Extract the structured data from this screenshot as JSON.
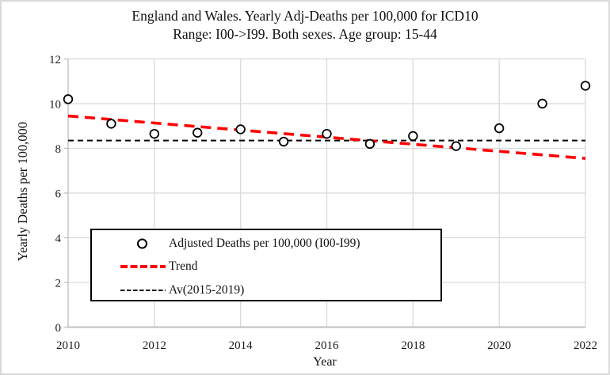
{
  "figure": {
    "title_line1": "England and Wales. Yearly Adj-Deaths per 100,000 for ICD10",
    "title_line2": "Range: I00->I99. Both sexes. Age group: 15-44",
    "x_axis_label": "Year",
    "y_axis_label": "Yearly Deaths per 100,000"
  },
  "legend": {
    "items": [
      {
        "marker": "open-circle-marker",
        "label": "Adjusted Deaths per 100,000 (I00-I99)"
      },
      {
        "marker": "red-dashed-line",
        "label": "Trend"
      },
      {
        "marker": "black-dashed-line",
        "label": "Av(2015-2019)"
      }
    ]
  },
  "colors": {
    "trend_red": "#ff0000",
    "marker_stroke": "#000000",
    "average_line": "#000000",
    "gridline": "#d9d9d9",
    "axis_line": "#bfbfbf",
    "text": "#1a1a1a",
    "figure_border": "#d9d9d9"
  },
  "chart_data": {
    "type": "scatter",
    "title": "England and Wales. Yearly Adj-Deaths per 100,000 for ICD10 Range: I00->I99. Both sexes. Age group: 15-44",
    "xlabel": "Year",
    "ylabel": "Yearly Deaths per 100,000",
    "xlim": [
      2010,
      2022
    ],
    "ylim": [
      0,
      12
    ],
    "x_ticks": [
      2010,
      2012,
      2014,
      2016,
      2018,
      2020,
      2022
    ],
    "y_ticks": [
      0,
      2,
      4,
      6,
      8,
      10,
      12
    ],
    "grid": true,
    "legend_position": "inside-lower-left",
    "x": [
      2010,
      2011,
      2012,
      2013,
      2014,
      2015,
      2016,
      2017,
      2018,
      2019,
      2020,
      2021,
      2022
    ],
    "series": [
      {
        "name": "Adjusted Deaths per 100,000 (I00-I99)",
        "type": "scatter",
        "marker": "open-circle",
        "color": "#000000",
        "values": [
          10.2,
          9.1,
          8.65,
          8.7,
          8.85,
          8.3,
          8.65,
          8.2,
          8.55,
          8.1,
          8.9,
          10.0,
          10.8
        ]
      },
      {
        "name": "Trend",
        "type": "line",
        "style": "dashed",
        "color": "#ff0000",
        "x": [
          2010,
          2022
        ],
        "values": [
          9.45,
          7.55
        ]
      },
      {
        "name": "Av(2015-2019)",
        "type": "line",
        "style": "dashed",
        "color": "#000000",
        "value": 8.35
      }
    ]
  }
}
